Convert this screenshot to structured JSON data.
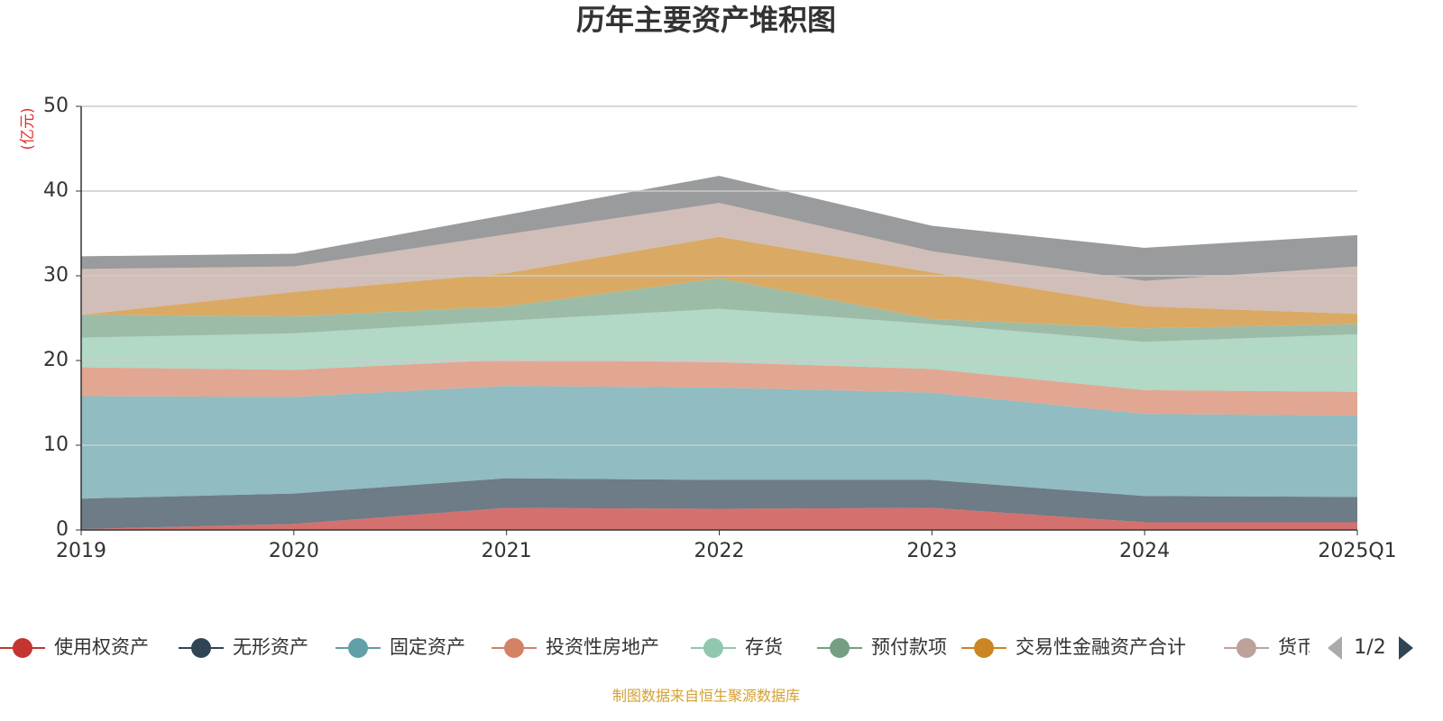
{
  "chart_data": {
    "type": "stacked_area",
    "title": "历年主要资产堆积图",
    "y_unit": "(亿元)",
    "categories": [
      "2019",
      "2020",
      "2021",
      "2022",
      "2023",
      "2024",
      "2025Q1"
    ],
    "series": [
      {
        "name": "使用权资产",
        "color": "#c23531",
        "values": [
          0.1,
          0.7,
          2.6,
          2.5,
          2.6,
          0.9,
          0.9
        ]
      },
      {
        "name": "无形资产",
        "color": "#2f4554",
        "values": [
          3.6,
          3.6,
          3.5,
          3.4,
          3.3,
          3.1,
          3.0
        ]
      },
      {
        "name": "固定资产",
        "color": "#61a0a8",
        "values": [
          12.1,
          11.4,
          10.9,
          10.9,
          10.3,
          9.7,
          9.6
        ]
      },
      {
        "name": "投资性房地产",
        "color": "#d48265",
        "values": [
          3.4,
          3.2,
          3.1,
          3.0,
          2.8,
          2.8,
          2.8
        ]
      },
      {
        "name": "存货",
        "color": "#91c7ae",
        "values": [
          3.5,
          4.3,
          4.6,
          6.3,
          5.3,
          5.7,
          6.8
        ]
      },
      {
        "name": "预付款项",
        "color": "#749f83",
        "values": [
          2.7,
          2.0,
          1.7,
          3.6,
          0.6,
          1.6,
          1.2
        ]
      },
      {
        "name": "交易性金融资产合计",
        "color": "#ca8622",
        "values": [
          0,
          2.9,
          3.9,
          4.9,
          5.5,
          2.6,
          1.2
        ]
      },
      {
        "name": "货币",
        "color": "#bda29a",
        "values": [
          5.4,
          3.0,
          4.6,
          4.0,
          2.5,
          3.0,
          5.6
        ]
      },
      {
        "color": "#6e7074",
        "values": [
          1.5,
          1.5,
          2.3,
          3.2,
          3.0,
          3.9,
          3.7
        ]
      }
    ],
    "ylim": [
      0,
      50
    ],
    "yticks": [
      0,
      10,
      20,
      30,
      40,
      50
    ],
    "grid": true,
    "legend_page": "1/2",
    "source": "制图数据来自恒生聚源数据库"
  }
}
